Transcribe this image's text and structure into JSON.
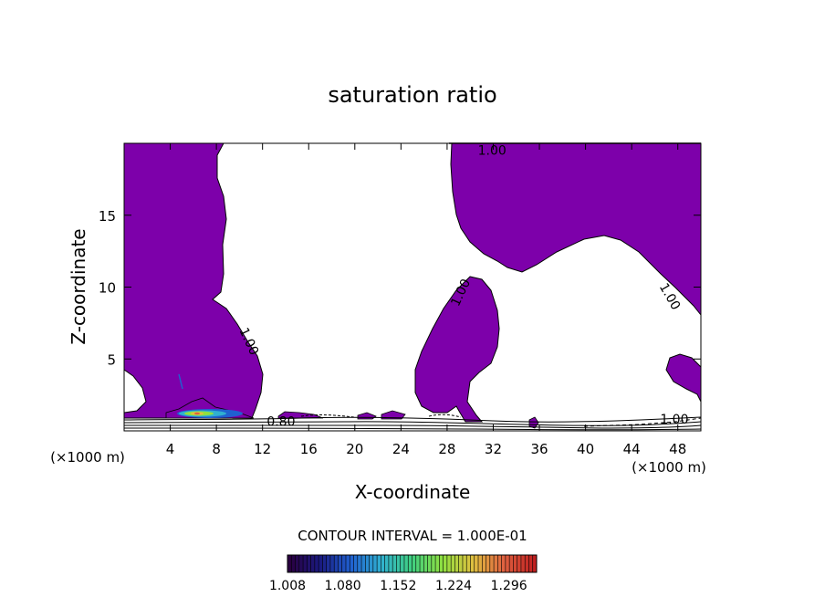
{
  "chart_data": {
    "type": "contour",
    "title": "saturation ratio",
    "xlabel": "X-coordinate",
    "ylabel": "Z-coordinate",
    "x_unit_left": "(×1000 m)",
    "x_unit_right": "(×1000 m)",
    "xlim": [
      0,
      50
    ],
    "ylim": [
      0,
      20
    ],
    "x_ticks": [
      4,
      8,
      12,
      16,
      20,
      24,
      28,
      32,
      36,
      40,
      44,
      48
    ],
    "y_ticks": [
      5,
      10,
      15
    ],
    "contour_interval_text": "CONTOUR INTERVAL = 1.000E-01",
    "fill_color": "#7d00aa",
    "fill_threshold": 1.0,
    "contour_labels": [
      {
        "text": "1.00",
        "x": 29.5,
        "y": 9.5,
        "angle": -65
      },
      {
        "text": "1.00",
        "x": 10.5,
        "y": 6.1,
        "angle": 65
      },
      {
        "text": "1.00",
        "x": 31.9,
        "y": 19.2,
        "angle": 0
      },
      {
        "text": "1.00",
        "x": 47.0,
        "y": 9.2,
        "angle": 60
      },
      {
        "text": "0.80",
        "x": 13.6,
        "y": 0.35,
        "angle": 0
      },
      {
        "text": "1.00",
        "x": 47.7,
        "y": 0.5,
        "angle": 0
      }
    ],
    "colorbar": {
      "min": 1.008,
      "max": 1.332,
      "tick_labels": [
        "1.008",
        "1.080",
        "1.152",
        "1.224",
        "1.296"
      ],
      "colors": [
        "#2a0040",
        "#1a1a80",
        "#2060d0",
        "#30b0d0",
        "#40d080",
        "#90e040",
        "#e0c040",
        "#e06040",
        "#c02020"
      ]
    }
  }
}
